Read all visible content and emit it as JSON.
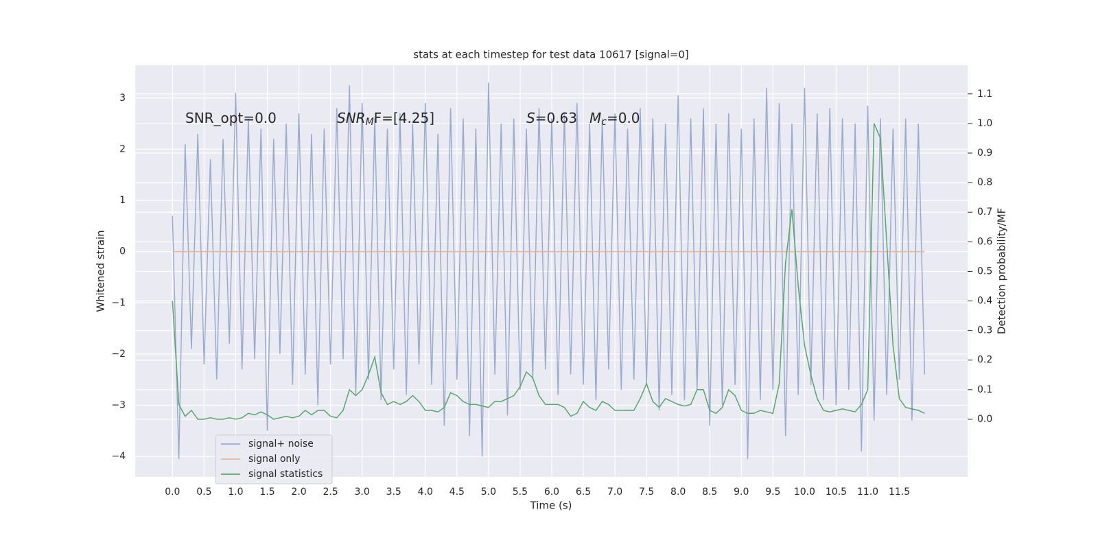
{
  "chart_data": {
    "type": "line",
    "title": "stats at each timestep for test data 10617 [signal=0]",
    "xlabel": "Time (s)",
    "ylabel": "Whitened strain",
    "y2label": "Detection probability/MF",
    "annotations": [
      {
        "text": "SNR_opt=0.0"
      },
      {
        "text": "SNR",
        "sub": "M",
        "tail": "F=[4.25]"
      },
      {
        "text": "S",
        "tail": "=0.63"
      },
      {
        "text": "M",
        "sub": "c",
        "tail": "=0.0"
      }
    ],
    "x": [
      0,
      0.1,
      0.2,
      0.3,
      0.4,
      0.5,
      0.6,
      0.7,
      0.8,
      0.9,
      1,
      1.1,
      1.2,
      1.3,
      1.4,
      1.5,
      1.6,
      1.7,
      1.8,
      1.9,
      2,
      2.1,
      2.2,
      2.3,
      2.4,
      2.5,
      2.6,
      2.7,
      2.8,
      2.9,
      3,
      3.1,
      3.2,
      3.3,
      3.4,
      3.5,
      3.6,
      3.7,
      3.8,
      3.9,
      4,
      4.1,
      4.2,
      4.3,
      4.4,
      4.5,
      4.6,
      4.7,
      4.8,
      4.9,
      5,
      5.1,
      5.2,
      5.3,
      5.4,
      5.5,
      5.6,
      5.7,
      5.8,
      5.9,
      6,
      6.1,
      6.2,
      6.3,
      6.4,
      6.5,
      6.6,
      6.7,
      6.8,
      6.9,
      7,
      7.1,
      7.2,
      7.3,
      7.4,
      7.5,
      7.6,
      7.7,
      7.8,
      7.9,
      8,
      8.1,
      8.2,
      8.3,
      8.4,
      8.5,
      8.6,
      8.7,
      8.8,
      8.9,
      9,
      9.1,
      9.2,
      9.3,
      9.4,
      9.5,
      9.6,
      9.7,
      9.8,
      9.9,
      10,
      10.1,
      10.2,
      10.3,
      10.4,
      10.5,
      10.6,
      10.7,
      10.8,
      10.9,
      11,
      11.1,
      11.2,
      11.3,
      11.4,
      11.5,
      11.6,
      11.7,
      11.8,
      11.9
    ],
    "series": [
      {
        "name": "signal+ noise",
        "color": "#9aabd0",
        "values": [
          0.7,
          -4.05,
          2.1,
          -1.9,
          2.3,
          -2.2,
          1.8,
          -2.5,
          2.2,
          -1.8,
          3.1,
          -2.3,
          2.6,
          -2.1,
          2.4,
          -3.5,
          2.2,
          -2.0,
          2.5,
          -2.6,
          2.7,
          -2.4,
          2.3,
          -3.0,
          2.4,
          -2.2,
          2.8,
          -2.1,
          3.25,
          -2.8,
          2.9,
          -2.5,
          2.6,
          -2.9,
          2.4,
          -2.3,
          2.7,
          -2.8,
          2.5,
          -2.2,
          2.9,
          -2.6,
          2.3,
          -3.4,
          2.8,
          -2.5,
          2.6,
          -3.6,
          2.4,
          -4.0,
          3.3,
          -2.4,
          2.5,
          -3.2,
          2.6,
          -2.7,
          2.4,
          -2.5,
          2.8,
          -2.3,
          2.6,
          -2.8,
          2.7,
          -2.4,
          2.9,
          -2.6,
          2.5,
          -2.9,
          2.6,
          -2.3,
          2.7,
          -2.7,
          2.4,
          -2.5,
          2.8,
          -2.6,
          2.6,
          -3.1,
          2.5,
          -2.8,
          3.05,
          -2.9,
          2.6,
          -2.7,
          2.8,
          -3.4,
          2.5,
          -3.0,
          2.7,
          -2.6,
          2.4,
          -4.05,
          2.6,
          -2.9,
          3.2,
          -2.7,
          2.9,
          -3.6,
          2.5,
          -2.8,
          3.2,
          -2.6,
          2.7,
          -2.9,
          2.8,
          -3.0,
          2.6,
          -2.7,
          2.5,
          -3.9,
          2.85,
          -3.3,
          2.6,
          -2.8,
          2.4,
          -2.5,
          2.6,
          -3.3,
          2.5,
          -2.4
        ]
      },
      {
        "name": "signal only",
        "color": "#e9b59a",
        "values": [
          0,
          0,
          0,
          0,
          0,
          0,
          0,
          0,
          0,
          0,
          0,
          0,
          0,
          0,
          0,
          0,
          0,
          0,
          0,
          0,
          0,
          0,
          0,
          0,
          0,
          0,
          0,
          0,
          0,
          0,
          0,
          0,
          0,
          0,
          0,
          0,
          0,
          0,
          0,
          0,
          0,
          0,
          0,
          0,
          0,
          0,
          0,
          0,
          0,
          0,
          0,
          0,
          0,
          0,
          0,
          0,
          0,
          0,
          0,
          0,
          0,
          0,
          0,
          0,
          0,
          0,
          0,
          0,
          0,
          0,
          0,
          0,
          0,
          0,
          0,
          0,
          0,
          0,
          0,
          0,
          0,
          0,
          0,
          0,
          0,
          0,
          0,
          0,
          0,
          0,
          0,
          0,
          0,
          0,
          0,
          0,
          0,
          0,
          0,
          0,
          0,
          0,
          0,
          0,
          0,
          0,
          0,
          0,
          0,
          0,
          0,
          0,
          0,
          0,
          0,
          0,
          0,
          0,
          0,
          0
        ]
      },
      {
        "name": "signal statistics",
        "color": "#55a868",
        "axis": "y2",
        "values": [
          0.4,
          0.05,
          0.01,
          0.03,
          0.0,
          0.0,
          0.005,
          0.0,
          0.0,
          0.005,
          0.0,
          0.005,
          0.02,
          0.015,
          0.025,
          0.015,
          0.0,
          0.005,
          0.01,
          0.005,
          0.01,
          0.03,
          0.015,
          0.03,
          0.03,
          0.01,
          0.005,
          0.03,
          0.1,
          0.08,
          0.1,
          0.15,
          0.21,
          0.09,
          0.05,
          0.06,
          0.05,
          0.06,
          0.08,
          0.06,
          0.03,
          0.03,
          0.025,
          0.04,
          0.09,
          0.08,
          0.06,
          0.05,
          0.05,
          0.045,
          0.04,
          0.06,
          0.06,
          0.07,
          0.08,
          0.11,
          0.16,
          0.14,
          0.08,
          0.05,
          0.05,
          0.05,
          0.04,
          0.01,
          0.02,
          0.06,
          0.04,
          0.03,
          0.06,
          0.05,
          0.03,
          0.03,
          0.03,
          0.03,
          0.07,
          0.12,
          0.06,
          0.04,
          0.07,
          0.06,
          0.05,
          0.045,
          0.05,
          0.1,
          0.1,
          0.03,
          0.02,
          0.04,
          0.1,
          0.08,
          0.03,
          0.02,
          0.02,
          0.03,
          0.025,
          0.02,
          0.12,
          0.53,
          0.71,
          0.45,
          0.25,
          0.15,
          0.07,
          0.03,
          0.025,
          0.03,
          0.035,
          0.03,
          0.025,
          0.05,
          0.1,
          1.0,
          0.95,
          0.6,
          0.25,
          0.07,
          0.04,
          0.035,
          0.03,
          0.02
        ]
      }
    ],
    "xlim": [
      -0.59,
      12.58
    ],
    "ylim": [
      -4.4,
      3.64
    ],
    "y2lim": [
      -0.195,
      1.197
    ],
    "xticks": [
      {
        "value": 0,
        "label": "0.0"
      },
      {
        "value": 0.5,
        "label": "0.5"
      },
      {
        "value": 1,
        "label": "1.0"
      },
      {
        "value": 1.5,
        "label": "1.5"
      },
      {
        "value": 2,
        "label": "2.0"
      },
      {
        "value": 2.5,
        "label": "2.5"
      },
      {
        "value": 3,
        "label": "3.0"
      },
      {
        "value": 3.5,
        "label": "3.5"
      },
      {
        "value": 4,
        "label": "4.0"
      },
      {
        "value": 4.5,
        "label": "4.5"
      },
      {
        "value": 5,
        "label": "5.0"
      },
      {
        "value": 5.5,
        "label": "5.5"
      },
      {
        "value": 6,
        "label": "6.0"
      },
      {
        "value": 6.5,
        "label": "6.5"
      },
      {
        "value": 7,
        "label": "7.0"
      },
      {
        "value": 7.5,
        "label": "7.5"
      },
      {
        "value": 8,
        "label": "8.0"
      },
      {
        "value": 8.5,
        "label": "8.5"
      },
      {
        "value": 9,
        "label": "9.0"
      },
      {
        "value": 9.5,
        "label": "9.5"
      },
      {
        "value": 10,
        "label": "10.0"
      },
      {
        "value": 10.5,
        "label": "10.5"
      },
      {
        "value": 11,
        "label": "11.0"
      },
      {
        "value": 11.5,
        "label": "11.5"
      }
    ],
    "yticks": [
      {
        "value": -4,
        "label": "−4"
      },
      {
        "value": -3,
        "label": "−3"
      },
      {
        "value": -2,
        "label": "−2"
      },
      {
        "value": -1,
        "label": "−1"
      },
      0,
      1,
      2,
      3
    ],
    "y2ticks": [
      {
        "value": 0,
        "label": "0.0"
      },
      {
        "value": 0.1,
        "label": "0.1"
      },
      {
        "value": 0.2,
        "label": "0.2"
      },
      {
        "value": 0.3,
        "label": "0.3"
      },
      {
        "value": 0.4,
        "label": "0.4"
      },
      {
        "value": 0.5,
        "label": "0.5"
      },
      {
        "value": 0.6,
        "label": "0.6"
      },
      {
        "value": 0.7,
        "label": "0.7"
      },
      {
        "value": 0.8,
        "label": "0.8"
      },
      {
        "value": 0.9,
        "label": "0.9"
      },
      {
        "value": 1,
        "label": "1.0"
      },
      {
        "value": 1.1,
        "label": "1.1"
      }
    ],
    "grid": true,
    "legend": "lower left"
  }
}
